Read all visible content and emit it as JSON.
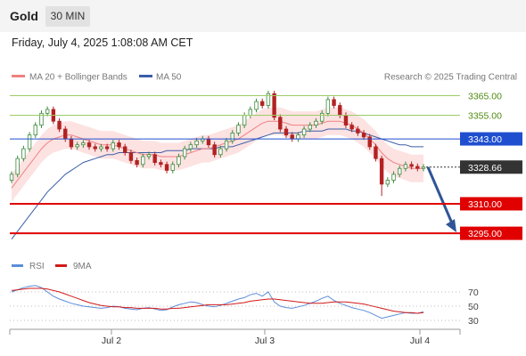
{
  "header": {
    "symbol": "Gold",
    "timeframe": "30 MIN",
    "datetime": "Friday, July 4, 2025 1:08:08 AM CET"
  },
  "legend": {
    "ma20": "MA 20 + Bollinger Bands",
    "ma50": "MA 50",
    "credit": "Research © 2025 Trading Central",
    "rsi": "RSI",
    "ma9": "9MA"
  },
  "colors": {
    "bollinger_fill": "#fde2e2",
    "ma20": "#f08080",
    "ma50": "#3a5ea8",
    "resistance": "#9ccc65",
    "support": "#e00000",
    "pivot": "#1f4fcf",
    "current": "#333333",
    "arrow": "#2f5597",
    "rsi": "#5b8dd9",
    "rsi_ma": "#d11a1a",
    "candle_up": "#3c8a3c",
    "candle_down": "#b22222"
  },
  "chart_data": [
    {
      "type": "candlestick",
      "title": "Gold 30 MIN",
      "x_ticks": [
        "Jul 2",
        "Jul 3",
        "Jul 4"
      ],
      "ylim": [
        3286,
        3372
      ],
      "levels": [
        {
          "label": "3365.00",
          "value": 3365.0,
          "kind": "resistance"
        },
        {
          "label": "3355.00",
          "value": 3355.0,
          "kind": "resistance"
        },
        {
          "label": "3343.00",
          "value": 3343.0,
          "kind": "pivot"
        },
        {
          "label": "3328.66",
          "value": 3328.66,
          "kind": "current"
        },
        {
          "label": "3310.00",
          "value": 3310.0,
          "kind": "support"
        },
        {
          "label": "3295.00",
          "value": 3295.0,
          "kind": "support"
        }
      ],
      "close": [
        3325,
        3333,
        3338,
        3345,
        3350,
        3356,
        3358,
        3352,
        3348,
        3343,
        3339,
        3340,
        3341,
        3339,
        3338,
        3339,
        3338,
        3341,
        3339,
        3336,
        3332,
        3330,
        3334,
        3335,
        3331,
        3330,
        3327,
        3330,
        3334,
        3338,
        3340,
        3342,
        3343,
        3340,
        3335,
        3338,
        3342,
        3346,
        3350,
        3355,
        3358,
        3362,
        3360,
        3366,
        3354,
        3348,
        3345,
        3343,
        3345,
        3348,
        3350,
        3352,
        3356,
        3363,
        3360,
        3355,
        3350,
        3348,
        3346,
        3344,
        3339,
        3333,
        3320,
        3322,
        3325,
        3328,
        3330,
        3329,
        3328,
        3328.66
      ],
      "ma20": [
        3318,
        3322,
        3326,
        3330,
        3334,
        3338,
        3341,
        3343,
        3344,
        3345,
        3345,
        3344,
        3343,
        3342,
        3341,
        3340,
        3340,
        3340,
        3339,
        3338,
        3337,
        3336,
        3335,
        3335,
        3335,
        3334,
        3334,
        3334,
        3334,
        3335,
        3336,
        3337,
        3338,
        3338,
        3339,
        3340,
        3341,
        3342,
        3343,
        3345,
        3347,
        3349,
        3351,
        3352,
        3352,
        3352,
        3351,
        3350,
        3350,
        3350,
        3350,
        3350,
        3351,
        3352,
        3352,
        3352,
        3351,
        3350,
        3348,
        3346,
        3343,
        3340,
        3336,
        3333,
        3331,
        3330,
        3329,
        3328,
        3328,
        3328
      ],
      "ma50": [
        3292,
        3296,
        3300,
        3304,
        3308,
        3312,
        3316,
        3319,
        3322,
        3325,
        3327,
        3329,
        3331,
        3332,
        3333,
        3334,
        3335,
        3335,
        3336,
        3336,
        3336,
        3336,
        3336,
        3336,
        3336,
        3336,
        3337,
        3337,
        3337,
        3337,
        3338,
        3338,
        3338,
        3338,
        3338,
        3339,
        3339,
        3339,
        3340,
        3341,
        3342,
        3343,
        3344,
        3345,
        3346,
        3346,
        3346,
        3346,
        3346,
        3347,
        3347,
        3347,
        3347,
        3348,
        3348,
        3348,
        3348,
        3347,
        3347,
        3346,
        3345,
        3344,
        3343,
        3342,
        3341,
        3340,
        3340,
        3339,
        3339,
        3339
      ]
    },
    {
      "type": "line",
      "title": "RSI",
      "y_ticks": [
        70,
        50,
        30
      ],
      "ylim": [
        25,
        85
      ],
      "series": [
        {
          "name": "RSI",
          "values": [
            70,
            73,
            76,
            78,
            79,
            76,
            70,
            64,
            60,
            57,
            54,
            52,
            50,
            49,
            48,
            47,
            48,
            50,
            49,
            47,
            46,
            45,
            47,
            48,
            46,
            44,
            45,
            49,
            52,
            54,
            56,
            55,
            52,
            50,
            49,
            51,
            54,
            57,
            60,
            62,
            66,
            68,
            64,
            70,
            56,
            50,
            48,
            47,
            49,
            51,
            54,
            57,
            61,
            64,
            58,
            54,
            51,
            48,
            46,
            44,
            41,
            37,
            33,
            35,
            37,
            39,
            41,
            40,
            40,
            42
          ]
        },
        {
          "name": "9MA",
          "values": [
            72,
            73,
            74,
            75,
            75,
            75,
            74,
            72,
            70,
            67,
            64,
            61,
            58,
            55,
            53,
            51,
            50,
            49,
            49,
            48,
            48,
            47,
            47,
            47,
            47,
            46,
            46,
            47,
            47,
            48,
            49,
            50,
            51,
            52,
            52,
            52,
            52,
            53,
            54,
            55,
            57,
            58,
            59,
            60,
            60,
            59,
            58,
            57,
            56,
            55,
            54,
            54,
            54,
            55,
            56,
            56,
            56,
            55,
            54,
            53,
            51,
            49,
            47,
            45,
            43,
            42,
            41,
            41,
            40,
            41
          ]
        }
      ]
    }
  ]
}
